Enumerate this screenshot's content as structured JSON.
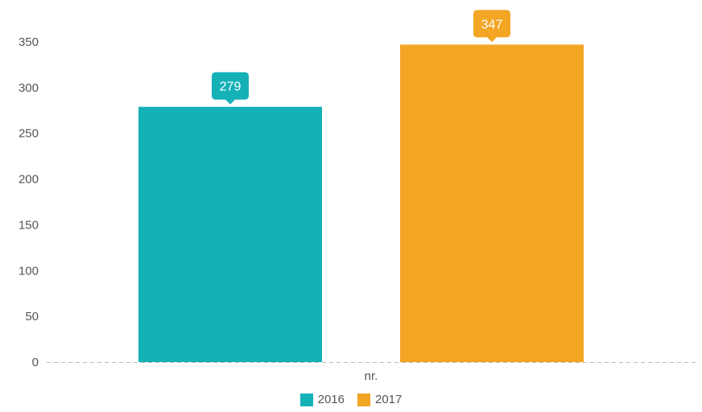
{
  "chart_data": {
    "type": "bar",
    "categories": [
      "nr."
    ],
    "series": [
      {
        "name": "2016",
        "values": [
          279
        ],
        "color": "#14b1b7"
      },
      {
        "name": "2017",
        "values": [
          347
        ],
        "color": "#f2a624"
      }
    ],
    "title": "",
    "xlabel": "",
    "ylabel": "",
    "ylim": [
      0,
      350
    ],
    "yticks": [
      0,
      50,
      100,
      150,
      200,
      250,
      300,
      350
    ],
    "grid": false,
    "legend": "bottom-center",
    "data_labels": true,
    "baseline_color": "#bbbbbb"
  }
}
